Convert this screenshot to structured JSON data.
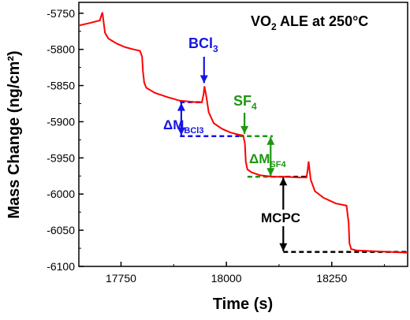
{
  "chart_data": {
    "type": "line",
    "title": "VO2 ALE at 250°C",
    "title_main": "VO",
    "title_sub": "2",
    "title_rest": " ALE at 250°C",
    "xlabel": "Time (s)",
    "ylabel": "Mass Change (ng/cm²)",
    "xlim": [
      17650,
      18430
    ],
    "ylim": [
      -6100,
      -5735
    ],
    "xticks": [
      17750,
      18000,
      18250
    ],
    "xtick_labels": [
      "17750",
      "18000",
      "18250"
    ],
    "yticks": [
      -6100,
      -6050,
      -6000,
      -5950,
      -5900,
      -5850,
      -5800,
      -5750
    ],
    "ytick_labels": [
      "-6100",
      "-6050",
      "-6000",
      "-5950",
      "-5900",
      "-5850",
      "-5800",
      "-5750"
    ],
    "line_color": "#ff0000",
    "series": [
      {
        "x": [
          17650,
          17680,
          17700,
          17704,
          17706,
          17712,
          17720,
          17740,
          17760,
          17780,
          17795,
          17800,
          17802,
          17805,
          17810,
          17830,
          17860,
          17890,
          17910,
          17930,
          17942,
          17946,
          17948,
          17952,
          17958,
          17970,
          17990,
          18010,
          18030,
          18040,
          18044,
          18046,
          18050,
          18060,
          18080,
          18110,
          18140,
          18170,
          18190,
          18193,
          18195,
          18200,
          18210,
          18230,
          18260,
          18285,
          18290,
          18292,
          18296,
          18310,
          18350,
          18390,
          18430
        ],
        "y": [
          -5767,
          -5763,
          -5760,
          -5752,
          -5749,
          -5777,
          -5785,
          -5792,
          -5797,
          -5800,
          -5802,
          -5810,
          -5830,
          -5846,
          -5853,
          -5860,
          -5866,
          -5871,
          -5872,
          -5873,
          -5873,
          -5862,
          -5851,
          -5864,
          -5887,
          -5902,
          -5910,
          -5915,
          -5918,
          -5919,
          -5930,
          -5955,
          -5966,
          -5970,
          -5974,
          -5976,
          -5976,
          -5977,
          -5977,
          -5966,
          -5955,
          -5980,
          -5996,
          -6005,
          -6013,
          -6016,
          -6040,
          -6068,
          -6076,
          -6078,
          -6079,
          -6080,
          -6081
        ]
      }
    ],
    "annotations": {
      "bcl3_label": "BCl",
      "bcl3_sub": "3",
      "sf4_label": "SF",
      "sf4_sub": "4",
      "delta_bcl3": "ΔM",
      "delta_bcl3_sub": "BCl3",
      "delta_sf4": "ΔM",
      "delta_sf4_sub": "SF4",
      "mcpc": "MCPC",
      "blue": "#1414e6",
      "green": "#1e9614",
      "black": "#000000"
    },
    "grid": false
  }
}
